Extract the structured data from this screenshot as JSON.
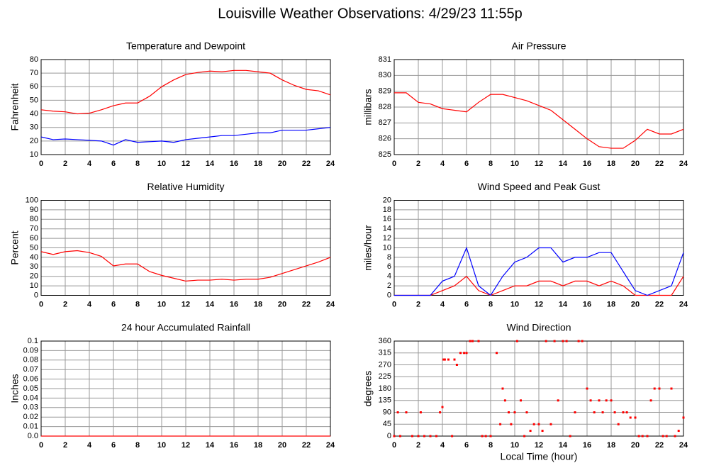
{
  "title": "Louisville Weather Observations: 4/29/23 11:55p",
  "chart_data": [
    {
      "type": "line",
      "title": "Temperature and Dewpoint",
      "ylabel": "Fahrenheit",
      "x": [
        0,
        1,
        2,
        3,
        4,
        5,
        6,
        7,
        8,
        9,
        10,
        11,
        12,
        13,
        14,
        15,
        16,
        17,
        18,
        19,
        20,
        21,
        22,
        23,
        24
      ],
      "series": [
        {
          "color": "#ff0000",
          "values": [
            43,
            42,
            41.5,
            40,
            40.5,
            43,
            46,
            48,
            48,
            53,
            60,
            65,
            69,
            70.5,
            71.5,
            71,
            72,
            72,
            71,
            70,
            65,
            61,
            58,
            57,
            54
          ]
        },
        {
          "color": "#0000ff",
          "values": [
            23,
            21,
            21.5,
            21,
            20.5,
            20,
            17,
            21,
            19,
            19.5,
            20,
            19,
            21,
            22,
            23,
            24,
            24,
            25,
            26,
            26,
            28,
            28,
            28,
            29,
            30
          ]
        }
      ],
      "xlim": [
        0,
        24
      ],
      "xticks": [
        0,
        2,
        4,
        6,
        8,
        10,
        12,
        14,
        16,
        18,
        20,
        22,
        24
      ],
      "ylim": [
        10,
        80
      ],
      "yticks": [
        10,
        20,
        30,
        40,
        50,
        60,
        70,
        80
      ],
      "grid": true
    },
    {
      "type": "line",
      "title": "Air Pressure",
      "ylabel": "millibars",
      "x": [
        0,
        1,
        2,
        3,
        4,
        5,
        6,
        7,
        8,
        9,
        10,
        11,
        12,
        13,
        14,
        15,
        16,
        17,
        18,
        19,
        20,
        21,
        22,
        23,
        24
      ],
      "series": [
        {
          "color": "#ff0000",
          "values": [
            828.9,
            828.9,
            828.3,
            828.2,
            827.9,
            827.8,
            827.7,
            828.3,
            828.8,
            828.8,
            828.6,
            828.4,
            828.1,
            827.8,
            827.2,
            826.6,
            826,
            825.5,
            825.4,
            825.4,
            825.9,
            826.6,
            826.3,
            826.3,
            826.6
          ]
        }
      ],
      "xlim": [
        0,
        24
      ],
      "xticks": [
        0,
        2,
        4,
        6,
        8,
        10,
        12,
        14,
        16,
        18,
        20,
        22,
        24
      ],
      "ylim": [
        825,
        831
      ],
      "yticks": [
        825,
        826,
        827,
        828,
        829,
        830,
        831
      ],
      "grid": true
    },
    {
      "type": "line",
      "title": "Relative Humidity",
      "ylabel": "Percent",
      "x": [
        0,
        1,
        2,
        3,
        4,
        5,
        6,
        7,
        8,
        9,
        10,
        11,
        12,
        13,
        14,
        15,
        16,
        17,
        18,
        19,
        20,
        21,
        22,
        23,
        24
      ],
      "series": [
        {
          "color": "#ff0000",
          "values": [
            46,
            43,
            46,
            47,
            45,
            41,
            31,
            33,
            33,
            25,
            21,
            18,
            15,
            16,
            16,
            17,
            16,
            17,
            17,
            19,
            23,
            27,
            31,
            35,
            40
          ]
        }
      ],
      "xlim": [
        0,
        24
      ],
      "xticks": [
        0,
        2,
        4,
        6,
        8,
        10,
        12,
        14,
        16,
        18,
        20,
        22,
        24
      ],
      "ylim": [
        0,
        100
      ],
      "yticks": [
        0,
        10,
        20,
        30,
        40,
        50,
        60,
        70,
        80,
        90,
        100
      ],
      "grid": true
    },
    {
      "type": "line",
      "title": "Wind Speed and Peak Gust",
      "ylabel": "miles/hour",
      "x": [
        0,
        1,
        2,
        3,
        4,
        5,
        6,
        7,
        8,
        9,
        10,
        11,
        12,
        13,
        14,
        15,
        16,
        17,
        18,
        19,
        20,
        21,
        22,
        23,
        24
      ],
      "series": [
        {
          "color": "#ff0000",
          "values": [
            0,
            0,
            0,
            0,
            1,
            2,
            4,
            1,
            0,
            1,
            2,
            2,
            3,
            3,
            2,
            3,
            3,
            2,
            3,
            2,
            0,
            0,
            0,
            0,
            4
          ]
        },
        {
          "color": "#0000ff",
          "values": [
            0,
            0,
            0,
            0,
            3,
            4,
            10,
            2,
            0,
            4,
            7,
            8,
            10,
            10,
            7,
            8,
            8,
            9,
            9,
            5,
            1,
            0,
            1,
            2,
            9
          ]
        }
      ],
      "xlim": [
        0,
        24
      ],
      "xticks": [
        0,
        2,
        4,
        6,
        8,
        10,
        12,
        14,
        16,
        18,
        20,
        22,
        24
      ],
      "ylim": [
        0,
        20
      ],
      "yticks": [
        0,
        2,
        4,
        6,
        8,
        10,
        12,
        14,
        16,
        18,
        20
      ],
      "grid": true
    },
    {
      "type": "line",
      "title": "24 hour Accumulated Rainfall",
      "ylabel": "Inches",
      "x": [
        0,
        24
      ],
      "series": [
        {
          "color": "#ff0000",
          "values": [
            0,
            0
          ]
        }
      ],
      "xlim": [
        0,
        24
      ],
      "xticks": [
        0,
        2,
        4,
        6,
        8,
        10,
        12,
        14,
        16,
        18,
        20,
        22,
        24
      ],
      "ylim": [
        0,
        0.1
      ],
      "yticks": [
        {
          "value": 0,
          "label": "0.0"
        },
        0.01,
        0.02,
        0.03,
        0.04,
        0.05,
        0.06,
        0.07,
        0.08,
        0.09,
        0.1
      ],
      "grid": true
    },
    {
      "type": "scatter",
      "title": "Wind Direction",
      "ylabel": "degrees",
      "xlabel": "Local Time (hour)",
      "x": [
        0,
        0.3,
        0.5,
        1,
        1.5,
        2,
        2.2,
        2.5,
        3,
        3.5,
        3.8,
        4,
        4.1,
        4.2,
        4.5,
        4.8,
        5,
        5.2,
        5.5,
        5.8,
        6,
        6.3,
        6.5,
        7,
        7.3,
        7.6,
        8,
        8.5,
        8.8,
        9,
        9.2,
        9.5,
        9.7,
        10,
        10.2,
        10.5,
        10.8,
        11,
        11.3,
        11.6,
        12,
        12.3,
        12.6,
        13,
        13.3,
        13.6,
        14,
        14.3,
        14.6,
        15,
        15.3,
        15.6,
        16,
        16.3,
        16.6,
        17,
        17.3,
        17.6,
        18,
        18.3,
        18.6,
        19,
        19.3,
        19.6,
        20,
        20.3,
        20.6,
        21,
        21.3,
        21.6,
        22,
        22.3,
        22.6,
        23,
        23.3,
        23.6,
        24
      ],
      "series": [
        {
          "color": "#ff0000",
          "values": [
            0,
            90,
            0,
            90,
            0,
            0,
            90,
            0,
            0,
            0,
            90,
            110,
            290,
            290,
            290,
            0,
            290,
            270,
            315,
            315,
            315,
            360,
            360,
            360,
            0,
            0,
            0,
            315,
            45,
            180,
            135,
            90,
            45,
            90,
            360,
            135,
            0,
            90,
            20,
            45,
            45,
            20,
            360,
            45,
            360,
            135,
            360,
            360,
            0,
            90,
            360,
            360,
            180,
            135,
            90,
            135,
            90,
            135,
            135,
            90,
            45,
            90,
            90,
            70,
            70,
            0,
            0,
            0,
            135,
            180,
            180,
            0,
            0,
            180,
            0,
            20,
            70
          ]
        }
      ],
      "xlim": [
        0,
        24
      ],
      "xticks": [
        0,
        2,
        4,
        6,
        8,
        10,
        12,
        14,
        16,
        18,
        20,
        22,
        24
      ],
      "ylim": [
        0,
        360
      ],
      "yticks": [
        0,
        45,
        90,
        135,
        180,
        225,
        270,
        315,
        360
      ],
      "grid": true
    }
  ]
}
